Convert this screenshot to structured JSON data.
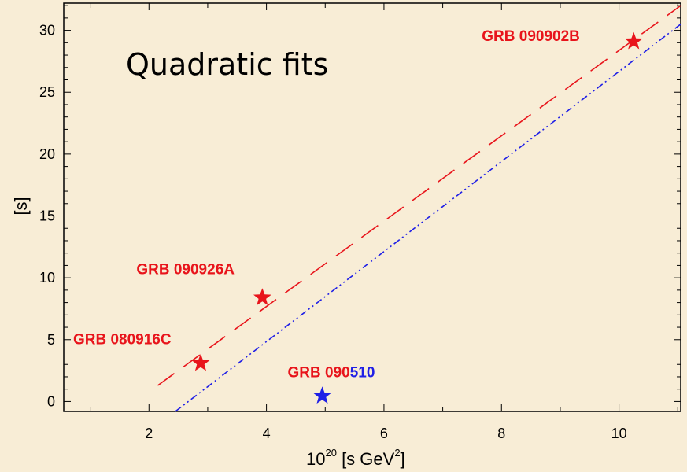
{
  "chart_data": {
    "type": "scatter",
    "title": "Quadratic fits",
    "xlabel_base": "10",
    "xlabel_exp": "20",
    "xlabel_mid": " [s GeV",
    "xlabel_sq": "2",
    "xlabel_end": "]",
    "ylabel": "[s]",
    "xlim": [
      0.55,
      11.05
    ],
    "ylim": [
      -0.8,
      32.2
    ],
    "x_ticks": [
      2,
      4,
      6,
      8,
      10
    ],
    "y_ticks": [
      0,
      5,
      10,
      15,
      20,
      25,
      30
    ],
    "points": [
      {
        "name": "GRB 080916C",
        "x": 2.88,
        "y": 3.1,
        "color": "#e8141b"
      },
      {
        "name": "GRB 090926A",
        "x": 3.93,
        "y": 8.4,
        "color": "#e8141b"
      },
      {
        "name": "GRB 090902B",
        "x": 10.25,
        "y": 29.1,
        "color": "#e8141b"
      },
      {
        "name_prefix": "GRB 090",
        "name_suffix": "510",
        "x": 4.95,
        "y": 0.45,
        "color": "#1f1fe6",
        "prefix_color": "#e8141b",
        "suffix_color": "#1f1fe6"
      }
    ],
    "fit_lines": [
      {
        "style": "dashed",
        "color": "#e8141b",
        "x": [
          2.15,
          11.05
        ],
        "y": [
          1.3,
          32.0
        ]
      },
      {
        "style": "dash-dot-dot",
        "color": "#1f1fe6",
        "x": [
          2.45,
          11.05
        ],
        "y": [
          -0.8,
          30.5
        ]
      }
    ],
    "grid": false
  }
}
